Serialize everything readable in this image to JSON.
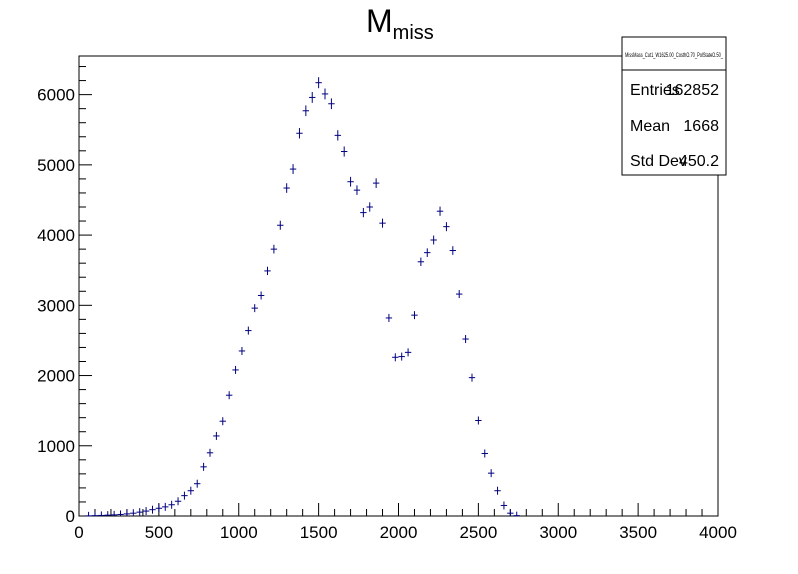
{
  "title": {
    "main": "M",
    "subscript": "miss"
  },
  "stats_box": {
    "name": "MissMass_Cut1_W1625.00_CosthO.70_PolStateO.50_",
    "rows": [
      {
        "label": "Entries",
        "value": "162852"
      },
      {
        "label": "Mean",
        "value": "1668"
      },
      {
        "label": "Std Dev",
        "value": "450.2"
      }
    ]
  },
  "colors": {
    "markers": "#000080",
    "axes": "#000000",
    "background": "#ffffff"
  },
  "chart_data": {
    "type": "scatter",
    "style": "histogram-with-error-bars",
    "title": "M_miss",
    "xlabel": "",
    "ylabel": "",
    "xlim": [
      0,
      4000
    ],
    "ylim": [
      0,
      6550
    ],
    "x_ticks": [
      0,
      500,
      1000,
      1500,
      2000,
      2500,
      3000,
      3500,
      4000
    ],
    "y_ticks": [
      0,
      1000,
      2000,
      3000,
      4000,
      5000,
      6000
    ],
    "grid": false,
    "legend": "none",
    "bin_width": 40,
    "series": [
      {
        "x": [
          60,
          100,
          140,
          180,
          220,
          260,
          300,
          340,
          380,
          420,
          460,
          500,
          540,
          580,
          620,
          660,
          700,
          740,
          780,
          820,
          860,
          900,
          940,
          980,
          1020,
          1060,
          1100,
          1140,
          1180,
          1220,
          1260,
          1300,
          1340,
          1380,
          1420,
          1460,
          1500,
          1540,
          1580,
          1620,
          1660,
          1700,
          1740,
          1780,
          1820,
          1860,
          1900,
          1940,
          1980,
          2020,
          2060,
          2100,
          2140,
          2180,
          2220,
          2260,
          2300,
          2340,
          2380,
          2420,
          2460,
          2500,
          2540,
          2580,
          2620,
          2660,
          2700,
          2740
        ],
        "y": [
          2,
          5,
          8,
          12,
          16,
          22,
          30,
          40,
          55,
          70,
          90,
          110,
          130,
          160,
          210,
          290,
          360,
          460,
          700,
          900,
          1140,
          1350,
          1720,
          2080,
          2350,
          2640,
          2960,
          3140,
          3490,
          3800,
          4140,
          4670,
          4940,
          5450,
          5770,
          5960,
          6170,
          6010,
          5870,
          5420,
          5190,
          4760,
          4640,
          4320,
          4400,
          4740,
          4170,
          2820,
          2260,
          2270,
          2330,
          2860,
          3620,
          3750,
          3930,
          4340,
          4120,
          3780,
          3160,
          2520,
          1970,
          1360,
          890,
          610,
          360,
          150,
          40,
          5
        ]
      }
    ]
  }
}
